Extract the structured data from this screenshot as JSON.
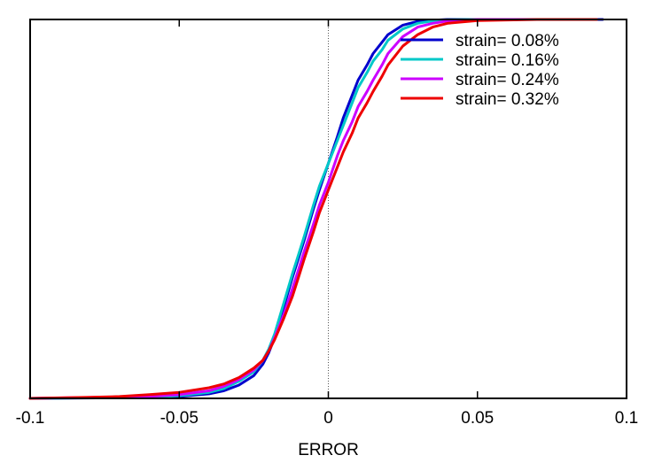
{
  "chart_data": {
    "type": "line",
    "title": "",
    "xlabel": "ERROR",
    "ylabel": "",
    "xlim": [
      -0.1,
      0.1
    ],
    "ylim": [
      0,
      1
    ],
    "xticks": [
      "-0.1",
      "-0.05",
      "0",
      "0.05",
      "0.1"
    ],
    "grid": false,
    "legend_position": "top-right",
    "reference_line_x": 0,
    "series": [
      {
        "name": "strain= 0.08%",
        "color": "#0000cc",
        "x": [
          -0.1,
          -0.06,
          -0.05,
          -0.04,
          -0.035,
          -0.03,
          -0.025,
          -0.022,
          -0.02,
          -0.018,
          -0.015,
          -0.012,
          -0.01,
          -0.008,
          -0.005,
          -0.003,
          0,
          0.003,
          0.005,
          0.008,
          0.01,
          0.013,
          0.015,
          0.018,
          0.02,
          0.025,
          0.03,
          0.035,
          0.04,
          0.05,
          0.07,
          0.092
        ],
        "y": [
          0,
          0.002,
          0.005,
          0.012,
          0.02,
          0.035,
          0.06,
          0.09,
          0.12,
          0.16,
          0.24,
          0.32,
          0.37,
          0.42,
          0.5,
          0.55,
          0.62,
          0.69,
          0.74,
          0.8,
          0.84,
          0.88,
          0.91,
          0.94,
          0.96,
          0.985,
          0.995,
          0.998,
          1.0,
          1.0,
          1.0,
          1.0
        ]
      },
      {
        "name": "strain= 0.16%",
        "color": "#00c8c8",
        "x": [
          -0.1,
          -0.06,
          -0.05,
          -0.04,
          -0.035,
          -0.03,
          -0.025,
          -0.022,
          -0.02,
          -0.018,
          -0.015,
          -0.012,
          -0.01,
          -0.008,
          -0.005,
          -0.003,
          0,
          0.003,
          0.005,
          0.008,
          0.01,
          0.013,
          0.015,
          0.018,
          0.02,
          0.025,
          0.03,
          0.035,
          0.04,
          0.05,
          0.07,
          0.09
        ],
        "y": [
          0,
          0.003,
          0.007,
          0.016,
          0.026,
          0.045,
          0.07,
          0.1,
          0.13,
          0.17,
          0.25,
          0.33,
          0.38,
          0.43,
          0.51,
          0.56,
          0.62,
          0.68,
          0.72,
          0.78,
          0.82,
          0.86,
          0.89,
          0.92,
          0.945,
          0.975,
          0.99,
          0.996,
          0.999,
          1.0,
          1.0,
          1.0
        ]
      },
      {
        "name": "strain= 0.24%",
        "color": "#cc00ff",
        "x": [
          -0.1,
          -0.06,
          -0.05,
          -0.04,
          -0.035,
          -0.03,
          -0.025,
          -0.022,
          -0.02,
          -0.018,
          -0.015,
          -0.012,
          -0.01,
          -0.008,
          -0.005,
          -0.003,
          0,
          0.003,
          0.005,
          0.008,
          0.01,
          0.013,
          0.015,
          0.018,
          0.02,
          0.025,
          0.03,
          0.035,
          0.04,
          0.05,
          0.07,
          0.09
        ],
        "y": [
          0,
          0.005,
          0.01,
          0.02,
          0.032,
          0.05,
          0.075,
          0.1,
          0.125,
          0.16,
          0.22,
          0.29,
          0.34,
          0.39,
          0.46,
          0.51,
          0.57,
          0.64,
          0.68,
          0.73,
          0.77,
          0.81,
          0.84,
          0.88,
          0.91,
          0.955,
          0.98,
          0.99,
          0.996,
          1.0,
          1.0,
          1.0
        ]
      },
      {
        "name": "strain= 0.32%",
        "color": "#ee0000",
        "x": [
          -0.1,
          -0.08,
          -0.07,
          -0.06,
          -0.05,
          -0.04,
          -0.035,
          -0.03,
          -0.025,
          -0.022,
          -0.02,
          -0.018,
          -0.015,
          -0.012,
          -0.01,
          -0.008,
          -0.005,
          -0.003,
          0,
          0.003,
          0.005,
          0.008,
          0.01,
          0.013,
          0.015,
          0.018,
          0.02,
          0.025,
          0.03,
          0.035,
          0.04,
          0.05,
          0.07,
          0.09
        ],
        "y": [
          0,
          0.003,
          0.005,
          0.01,
          0.016,
          0.028,
          0.038,
          0.055,
          0.08,
          0.1,
          0.125,
          0.155,
          0.21,
          0.27,
          0.32,
          0.37,
          0.44,
          0.49,
          0.55,
          0.61,
          0.65,
          0.7,
          0.74,
          0.78,
          0.81,
          0.85,
          0.88,
          0.93,
          0.96,
          0.98,
          0.99,
          0.997,
          1.0,
          1.0
        ]
      }
    ]
  }
}
